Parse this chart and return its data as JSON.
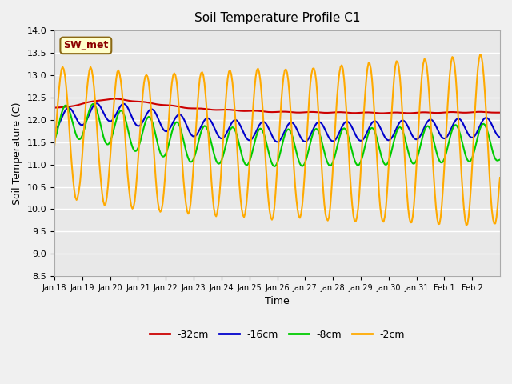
{
  "title": "Soil Temperature Profile C1",
  "xlabel": "Time",
  "ylabel": "Soil Temperature (C)",
  "ylim": [
    8.5,
    14.0
  ],
  "annotation": "SW_met",
  "background_color": "#e8e8e8",
  "plot_bg_color": "#e8e8e8",
  "legend_labels": [
    "-32cm",
    "-16cm",
    "-8cm",
    "-2cm"
  ],
  "legend_colors": [
    "#cc0000",
    "#0000cc",
    "#00cc00",
    "#ffaa00"
  ],
  "tick_labels": [
    "Jan 18",
    "Jan 19",
    "Jan 20",
    "Jan 21",
    "Jan 22",
    "Jan 23",
    "Jan 24",
    "Jan 25",
    "Jan 26",
    "Jan 27",
    "Jan 28",
    "Jan 29",
    "Jan 30",
    "Jan 31",
    "Feb 1",
    "Feb 2"
  ],
  "line_width": 1.5
}
